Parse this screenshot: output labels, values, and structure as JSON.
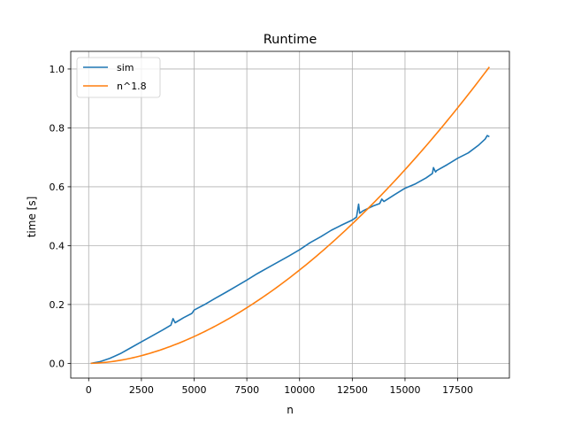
{
  "chart_data": {
    "type": "line",
    "title": "Runtime",
    "xlabel": "n",
    "ylabel": "time [s]",
    "xlim": [
      -850,
      19950
    ],
    "ylim": [
      -0.05,
      1.06
    ],
    "xticks": [
      0,
      2500,
      5000,
      7500,
      10000,
      12500,
      15000,
      17500
    ],
    "xtick_labels": [
      "0",
      "2500",
      "5000",
      "7500",
      "10000",
      "12500",
      "15000",
      "17500"
    ],
    "yticks": [
      0.0,
      0.2,
      0.4,
      0.6,
      0.8,
      1.0
    ],
    "ytick_labels": [
      "0.0",
      "0.2",
      "0.4",
      "0.6",
      "0.8",
      "1.0"
    ],
    "grid": true,
    "legend": "upper-left",
    "series": [
      {
        "name": "sim",
        "color": "#1f77b4",
        "x": [
          100,
          500,
          1000,
          1500,
          2000,
          2500,
          3000,
          3500,
          3900,
          4000,
          4100,
          4500,
          4900,
          5000,
          5500,
          6000,
          6500,
          7000,
          7500,
          8000,
          8500,
          9000,
          9500,
          10000,
          10500,
          11000,
          11500,
          12000,
          12500,
          12700,
          12800,
          12850,
          12950,
          13000,
          13500,
          13800,
          13900,
          14000,
          14500,
          15000,
          15500,
          16000,
          16300,
          16350,
          16450,
          16500,
          17000,
          17500,
          18000,
          18500,
          18800,
          18900,
          19000
        ],
        "y": [
          0.0,
          0.005,
          0.017,
          0.033,
          0.053,
          0.073,
          0.093,
          0.113,
          0.13,
          0.152,
          0.138,
          0.155,
          0.17,
          0.181,
          0.2,
          0.221,
          0.241,
          0.262,
          0.283,
          0.305,
          0.325,
          0.345,
          0.365,
          0.386,
          0.41,
          0.43,
          0.452,
          0.47,
          0.487,
          0.497,
          0.541,
          0.51,
          0.515,
          0.518,
          0.535,
          0.543,
          0.558,
          0.55,
          0.573,
          0.595,
          0.61,
          0.63,
          0.645,
          0.665,
          0.65,
          0.655,
          0.675,
          0.697,
          0.715,
          0.742,
          0.762,
          0.774,
          0.77
        ]
      },
      {
        "name": "n^1.8",
        "color": "#ff7f0e",
        "function": "power",
        "exponent": 1.8,
        "x_start": 100,
        "x_end": 19000,
        "y_at_end": 1.007
      }
    ]
  }
}
